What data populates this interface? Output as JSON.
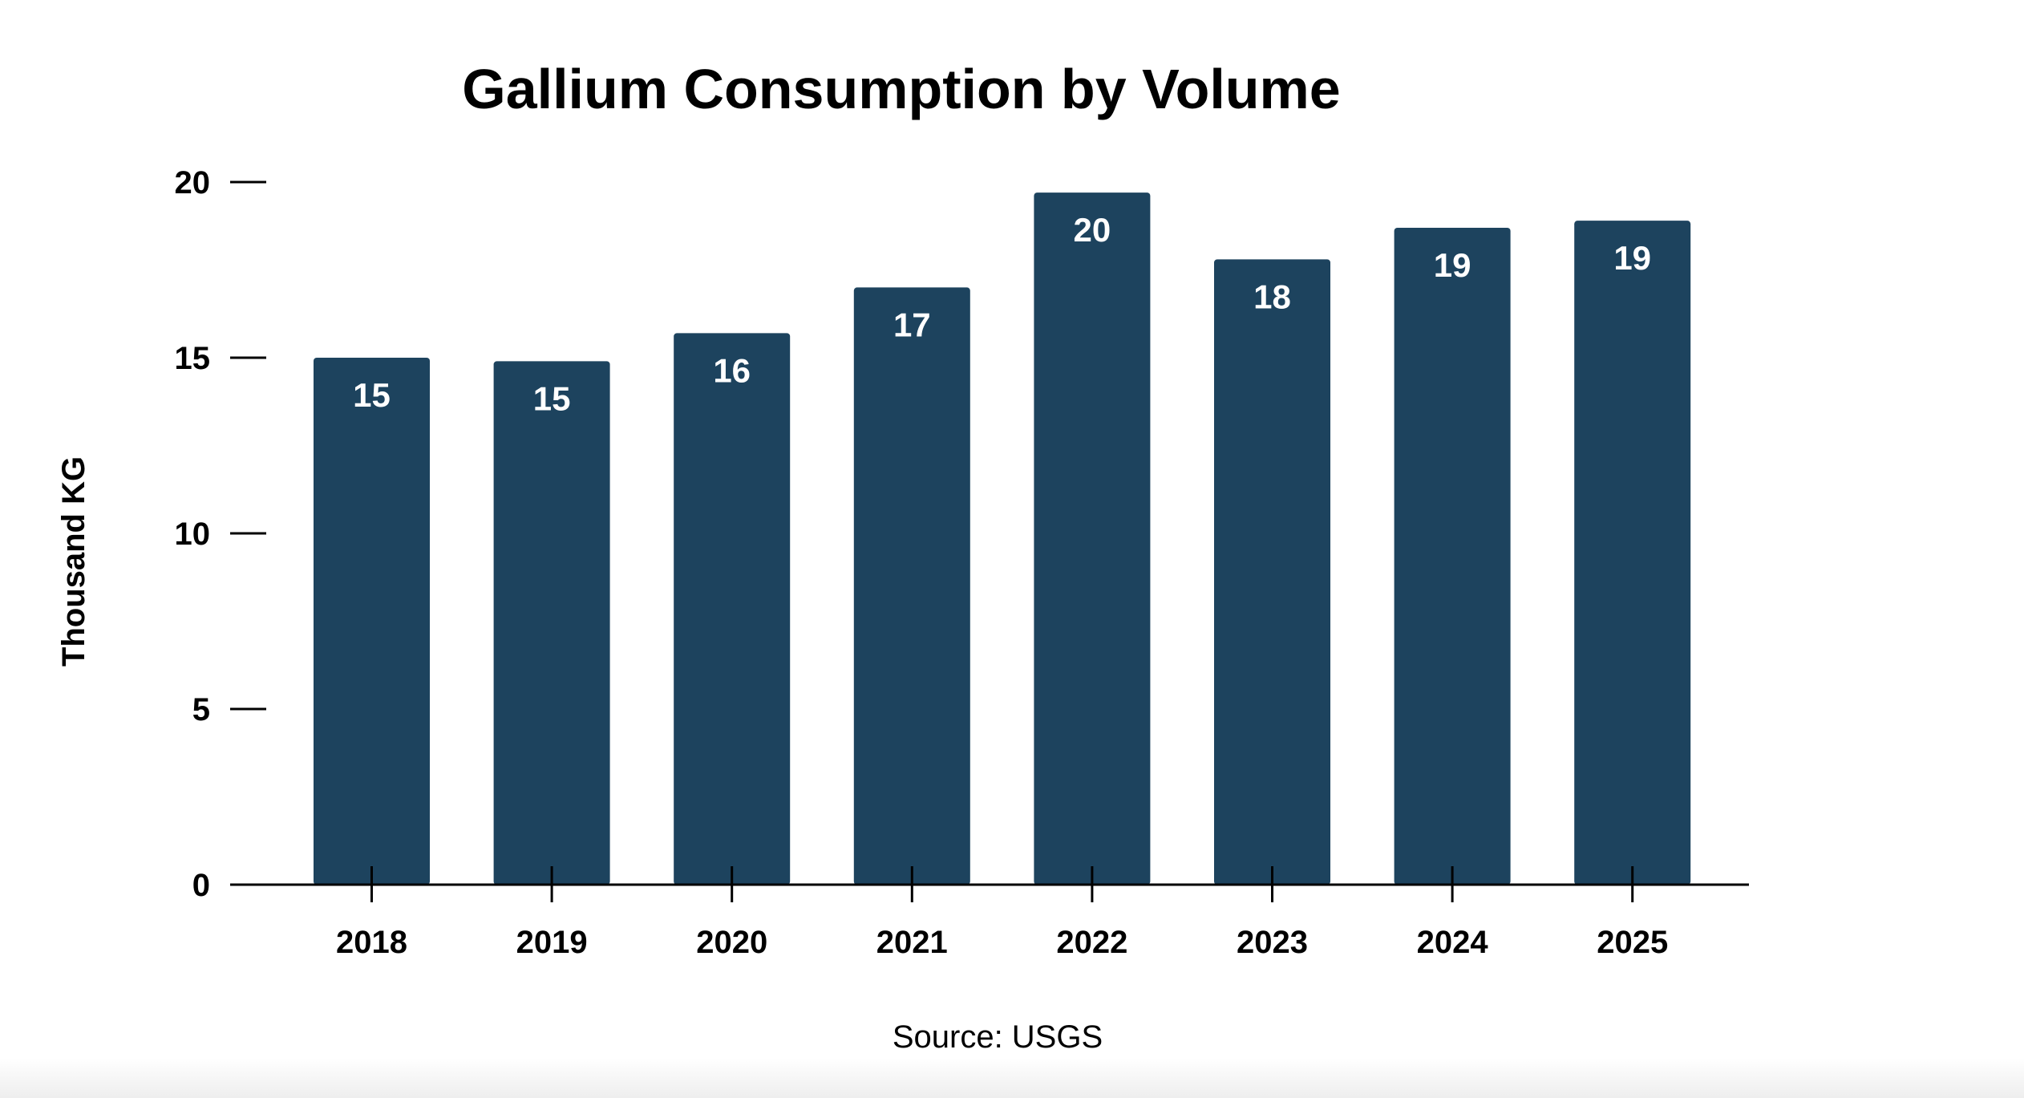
{
  "chart_data": {
    "type": "bar",
    "title": "Gallium Consumption by Volume",
    "xlabel": "",
    "ylabel": "Thousand KG",
    "source": "Source: USGS",
    "categories": [
      "2018",
      "2019",
      "2020",
      "2021",
      "2022",
      "2023",
      "2024",
      "2025"
    ],
    "values": [
      15.0,
      14.9,
      15.7,
      17.0,
      19.7,
      17.8,
      18.7,
      18.9
    ],
    "data_labels": [
      "15",
      "15",
      "16",
      "17",
      "20",
      "18",
      "19",
      "19"
    ],
    "ylim": [
      0,
      20
    ],
    "yticks": [
      0,
      5,
      10,
      15,
      20
    ],
    "grid": false,
    "bar_color": "#1d435e",
    "label_color": "#ffffff"
  }
}
